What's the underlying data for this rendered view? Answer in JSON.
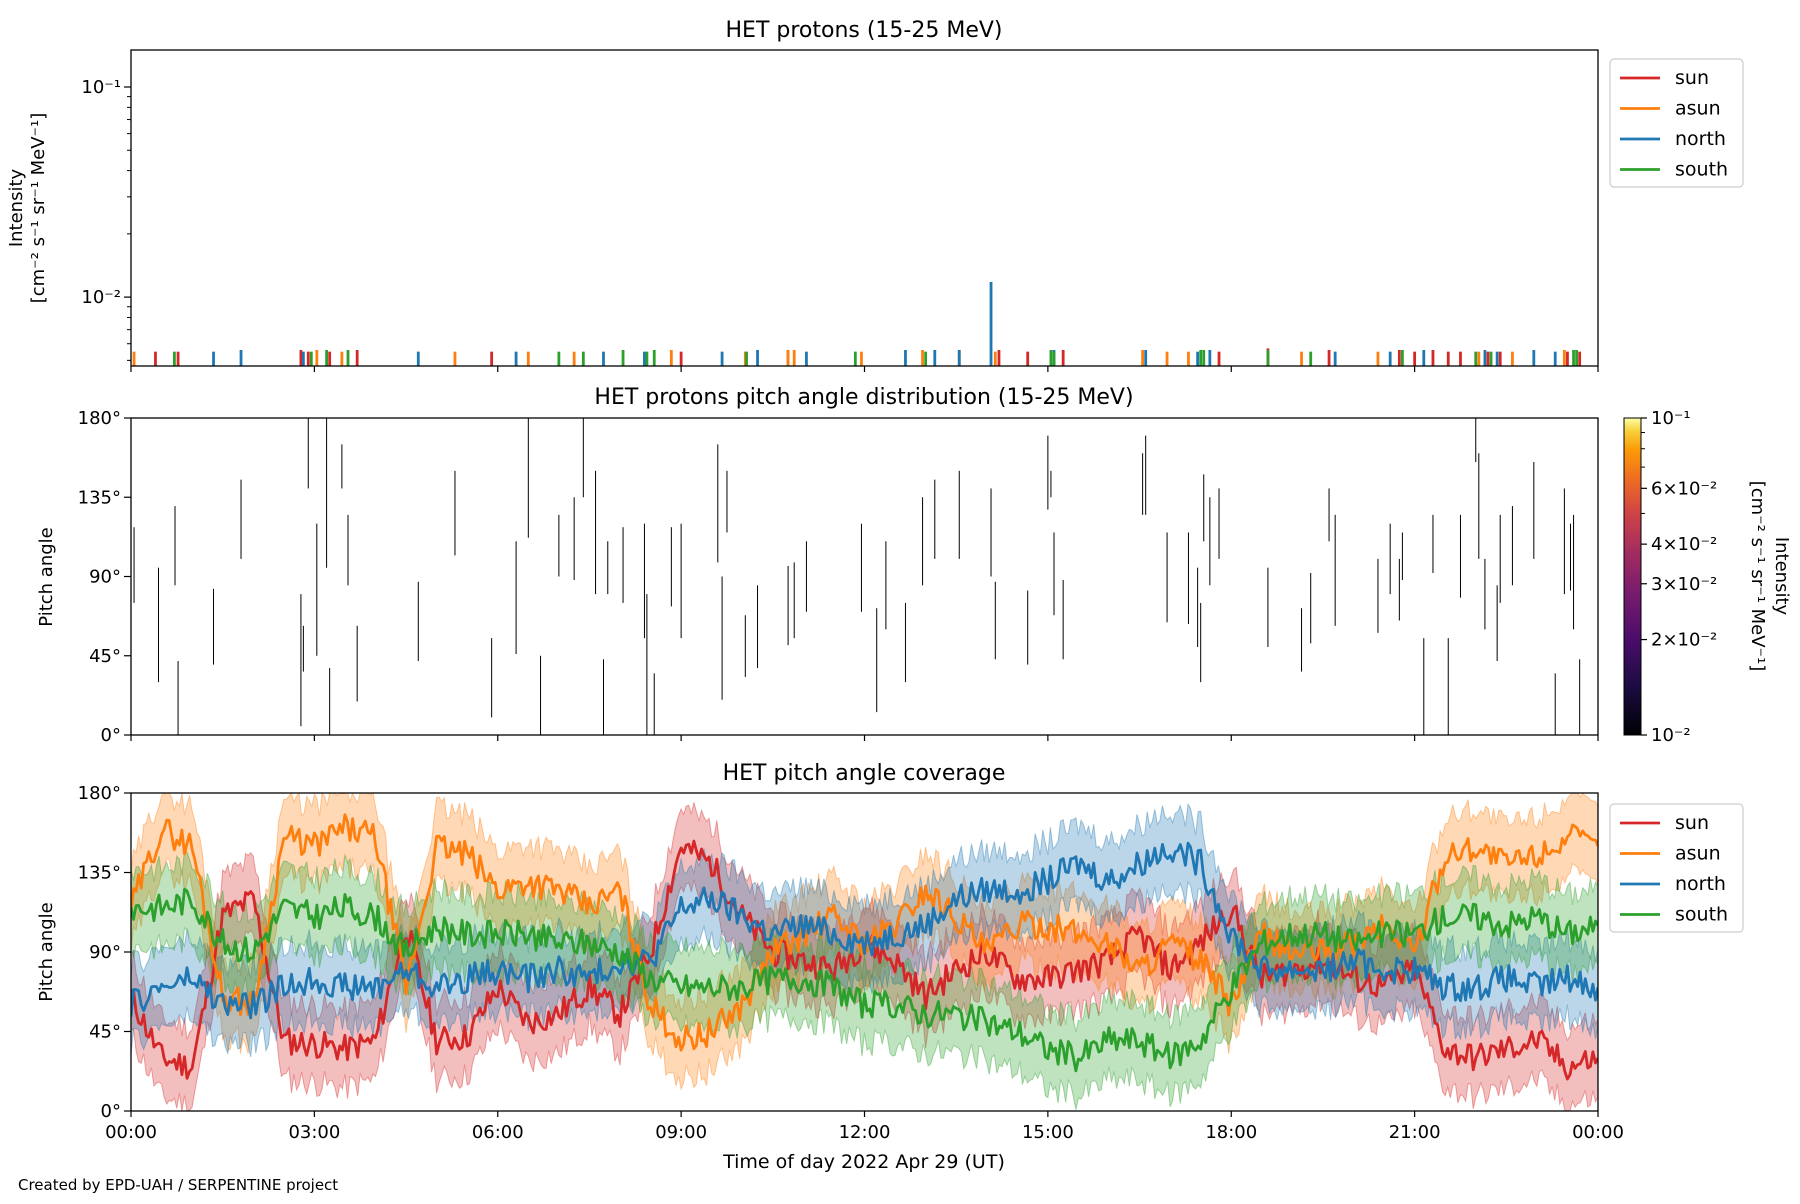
{
  "figure": {
    "credit": "Created by EPD-UAH / SERPENTINE project",
    "xlabel": "Time of day 2022 Apr 29 (UT)",
    "xticks": [
      "00:00",
      "03:00",
      "06:00",
      "09:00",
      "12:00",
      "15:00",
      "18:00",
      "21:00",
      "00:00"
    ]
  },
  "colors": {
    "sun": "#d62728",
    "asun": "#ff7f0e",
    "north": "#1f77b4",
    "south": "#2ca02c"
  },
  "chart_data": [
    {
      "type": "bar",
      "title": "HET protons (15-25 MeV)",
      "ylabel_line1": "Intensity",
      "ylabel_line2": "[cm⁻² s⁻¹ sr⁻¹ MeV⁻¹]",
      "yscale": "log",
      "ylim": [
        0.0047,
        0.15
      ],
      "yticks": [
        "10⁻²",
        "10⁻¹"
      ],
      "xlim_hours": [
        0,
        24
      ],
      "legend": {
        "placement": "outside-top-right",
        "entries": [
          "sun",
          "asun",
          "north",
          "south"
        ]
      },
      "series": [
        {
          "name": "sun",
          "x_hours": [
            0.4,
            0.77,
            2.78,
            2.9,
            3.25,
            3.7,
            5.9,
            9.0,
            10.75,
            14.2,
            14.67,
            15.25,
            17.8,
            18.6,
            19.6,
            20.75,
            21.0,
            21.3,
            21.55,
            21.75,
            22.2,
            22.4,
            23.5,
            23.7
          ],
          "values": [
            0.0055,
            0.0055,
            0.0056,
            0.0055,
            0.0055,
            0.0056,
            0.0055,
            0.0055,
            0.0056,
            0.0056,
            0.0055,
            0.0056,
            0.0055,
            0.0057,
            0.0056,
            0.0056,
            0.0055,
            0.0056,
            0.0055,
            0.0055,
            0.0055,
            0.0055,
            0.0055,
            0.0055
          ]
        },
        {
          "name": "asun",
          "x_hours": [
            0.05,
            3.04,
            3.45,
            5.3,
            6.5,
            7.25,
            8.84,
            10.05,
            10.75,
            10.85,
            11.95,
            12.95,
            13.55,
            14.14,
            16.55,
            16.95,
            17.3,
            19.15,
            20.4,
            22.05,
            22.6,
            23.45
          ],
          "values": [
            0.0055,
            0.0056,
            0.0055,
            0.0055,
            0.0055,
            0.0055,
            0.0056,
            0.0055,
            0.0056,
            0.0056,
            0.0055,
            0.0056,
            0.0056,
            0.0055,
            0.0056,
            0.0055,
            0.0055,
            0.0055,
            0.0055,
            0.0055,
            0.0055,
            0.0056
          ]
        },
        {
          "name": "north",
          "x_hours": [
            1.35,
            1.8,
            2.82,
            4.7,
            6.3,
            7.73,
            8.4,
            9.67,
            10.25,
            11.05,
            12.67,
            13.15,
            13.55,
            14.07,
            15.1,
            16.6,
            17.45,
            17.65,
            19.7,
            20.6,
            21.15,
            22.15,
            22.35,
            22.95,
            23.3
          ],
          "values": [
            0.0055,
            0.0056,
            0.0055,
            0.0055,
            0.0055,
            0.0055,
            0.0055,
            0.0055,
            0.0056,
            0.0055,
            0.0056,
            0.0056,
            0.0056,
            0.0118,
            0.0056,
            0.0056,
            0.0055,
            0.0056,
            0.0055,
            0.0055,
            0.0056,
            0.0056,
            0.0055,
            0.0056,
            0.0055
          ]
        },
        {
          "name": "south",
          "x_hours": [
            0.71,
            2.95,
            3.2,
            3.55,
            7.0,
            7.4,
            8.05,
            8.44,
            8.56,
            10.07,
            11.85,
            13.0,
            15.05,
            15.1,
            17.5,
            17.55,
            18.6,
            19.3,
            20.8,
            22.0,
            22.25,
            23.6,
            23.65
          ],
          "values": [
            0.0055,
            0.0055,
            0.0056,
            0.0056,
            0.0055,
            0.0055,
            0.0056,
            0.0055,
            0.0056,
            0.0055,
            0.0055,
            0.0055,
            0.0056,
            0.0055,
            0.0056,
            0.0056,
            0.0056,
            0.0055,
            0.0056,
            0.0055,
            0.0055,
            0.0056,
            0.0056
          ]
        }
      ]
    },
    {
      "type": "scatter",
      "title": "HET protons pitch angle distribution (15-25 MeV)",
      "ylabel": "Pitch angle",
      "ylim": [
        0,
        180
      ],
      "yticks": [
        "0°",
        "45°",
        "90°",
        "135°",
        "180°"
      ],
      "xlim_hours": [
        0,
        24
      ],
      "colorbar": {
        "label_line1": "Intensity",
        "label_line2": "[cm⁻² s⁻¹ sr⁻¹ MeV⁻¹]",
        "scale": "log",
        "range": [
          0.01,
          0.1
        ],
        "cmap": "inferno",
        "ticks": [
          "10⁻²",
          "2×10⁻²",
          "3×10⁻²",
          "4×10⁻²",
          "6×10⁻²",
          "10⁻¹"
        ]
      },
      "segments": [
        [
          0.05,
          75,
          118
        ],
        [
          0.45,
          30,
          95
        ],
        [
          0.72,
          85,
          130
        ],
        [
          0.77,
          0,
          42
        ],
        [
          1.35,
          40,
          83
        ],
        [
          1.8,
          100,
          145
        ],
        [
          2.78,
          5,
          80
        ],
        [
          2.82,
          36,
          62
        ],
        [
          2.9,
          140,
          180
        ],
        [
          3.04,
          45,
          120
        ],
        [
          3.2,
          95,
          180
        ],
        [
          3.25,
          0,
          38
        ],
        [
          3.45,
          140,
          165
        ],
        [
          3.55,
          85,
          125
        ],
        [
          3.7,
          19,
          62
        ],
        [
          4.7,
          42,
          87
        ],
        [
          5.3,
          102,
          150
        ],
        [
          5.9,
          10,
          55
        ],
        [
          6.3,
          46,
          110
        ],
        [
          6.5,
          112,
          180
        ],
        [
          6.7,
          0,
          45
        ],
        [
          7.0,
          90,
          125
        ],
        [
          7.25,
          88,
          135
        ],
        [
          7.4,
          135,
          180
        ],
        [
          7.73,
          0,
          43
        ],
        [
          7.6,
          80,
          150
        ],
        [
          7.8,
          80,
          110
        ],
        [
          8.05,
          75,
          118
        ],
        [
          8.4,
          55,
          120
        ],
        [
          8.44,
          0,
          80
        ],
        [
          8.56,
          0,
          35
        ],
        [
          8.84,
          73,
          118
        ],
        [
          9.0,
          55,
          120
        ],
        [
          9.6,
          98,
          165
        ],
        [
          9.67,
          20,
          90
        ],
        [
          9.75,
          115,
          150
        ],
        [
          10.05,
          33,
          68
        ],
        [
          10.25,
          38,
          85
        ],
        [
          10.75,
          51,
          96
        ],
        [
          10.85,
          55,
          98
        ],
        [
          11.05,
          70,
          110
        ],
        [
          11.95,
          70,
          120
        ],
        [
          12.2,
          13,
          72
        ],
        [
          12.35,
          60,
          110
        ],
        [
          12.67,
          30,
          75
        ],
        [
          12.95,
          85,
          135
        ],
        [
          13.15,
          100,
          145
        ],
        [
          13.55,
          100,
          150
        ],
        [
          14.07,
          90,
          140
        ],
        [
          14.14,
          43,
          87
        ],
        [
          14.67,
          40,
          82
        ],
        [
          15.0,
          128,
          170
        ],
        [
          15.05,
          135,
          150
        ],
        [
          15.1,
          68,
          115
        ],
        [
          15.25,
          43,
          88
        ],
        [
          16.55,
          125,
          160
        ],
        [
          16.6,
          125,
          170
        ],
        [
          16.95,
          64,
          115
        ],
        [
          17.3,
          63,
          115
        ],
        [
          17.45,
          50,
          95
        ],
        [
          17.5,
          30,
          75
        ],
        [
          17.55,
          110,
          148
        ],
        [
          17.65,
          85,
          135
        ],
        [
          17.8,
          100,
          140
        ],
        [
          18.6,
          50,
          95
        ],
        [
          19.15,
          36,
          72
        ],
        [
          19.3,
          52,
          92
        ],
        [
          19.6,
          110,
          140
        ],
        [
          19.7,
          62,
          125
        ],
        [
          20.4,
          58,
          100
        ],
        [
          20.6,
          80,
          120
        ],
        [
          20.75,
          65,
          100
        ],
        [
          20.8,
          88,
          115
        ],
        [
          21.15,
          0,
          55
        ],
        [
          21.3,
          92,
          125
        ],
        [
          21.55,
          0,
          55
        ],
        [
          21.75,
          78,
          125
        ],
        [
          22.0,
          155,
          180
        ],
        [
          22.05,
          100,
          160
        ],
        [
          22.15,
          60,
          100
        ],
        [
          22.35,
          42,
          85
        ],
        [
          22.4,
          75,
          125
        ],
        [
          22.6,
          85,
          130
        ],
        [
          22.95,
          100,
          155
        ],
        [
          23.3,
          0,
          35
        ],
        [
          23.45,
          80,
          140
        ],
        [
          23.55,
          82,
          120
        ],
        [
          23.6,
          60,
          125
        ],
        [
          23.7,
          0,
          43
        ]
      ]
    },
    {
      "type": "line",
      "title": "HET pitch angle coverage",
      "ylabel": "Pitch angle",
      "ylim": [
        0,
        180
      ],
      "yticks": [
        "0°",
        "45°",
        "90°",
        "135°",
        "180°"
      ],
      "xlim_hours": [
        0,
        24
      ],
      "band_halfwidth_deg": 22,
      "legend": {
        "placement": "outside-top-right",
        "entries": [
          "sun",
          "asun",
          "north",
          "south"
        ]
      },
      "series": [
        {
          "name": "sun",
          "x_hours": [
            0,
            0.5,
            1,
            1.5,
            2,
            2.5,
            3,
            3.5,
            4,
            4.5,
            5,
            5.5,
            6,
            6.5,
            7,
            7.5,
            8,
            8.5,
            9,
            9.5,
            10,
            10.5,
            11,
            11.5,
            12,
            12.5,
            13,
            13.5,
            14,
            14.5,
            15,
            15.5,
            16,
            16.5,
            17,
            17.5,
            18,
            18.5,
            19,
            19.5,
            20,
            20.5,
            21,
            21.5,
            22,
            22.5,
            23,
            23.5,
            24
          ],
          "values": [
            65,
            30,
            25,
            110,
            120,
            40,
            38,
            35,
            40,
            105,
            40,
            42,
            70,
            50,
            55,
            70,
            55,
            90,
            150,
            140,
            110,
            90,
            85,
            80,
            95,
            85,
            65,
            80,
            90,
            75,
            75,
            80,
            85,
            100,
            80,
            95,
            115,
            75,
            80,
            85,
            75,
            70,
            80,
            35,
            30,
            35,
            40,
            25,
            30
          ]
        },
        {
          "name": "asun",
          "x_hours": [
            0,
            0.5,
            1,
            1.5,
            2,
            2.5,
            3,
            3.5,
            4,
            4.5,
            5,
            5.5,
            6,
            6.5,
            7,
            7.5,
            8,
            8.5,
            9,
            9.5,
            10,
            10.5,
            11,
            11.5,
            12,
            12.5,
            13,
            13.5,
            14,
            14.5,
            15,
            15.5,
            16,
            16.5,
            17,
            17.5,
            18,
            18.5,
            19,
            19.5,
            20,
            20.5,
            21,
            21.5,
            22,
            22.5,
            23,
            23.5,
            24
          ],
          "values": [
            115,
            160,
            150,
            65,
            60,
            155,
            150,
            160,
            155,
            70,
            150,
            145,
            125,
            130,
            125,
            115,
            125,
            60,
            40,
            45,
            60,
            90,
            100,
            110,
            95,
            105,
            125,
            110,
            90,
            105,
            105,
            100,
            95,
            80,
            95,
            85,
            60,
            100,
            90,
            90,
            95,
            105,
            90,
            145,
            150,
            140,
            145,
            155,
            150
          ]
        },
        {
          "name": "north",
          "x_hours": [
            0,
            0.5,
            1,
            1.5,
            2,
            2.5,
            3,
            3.5,
            4,
            4.5,
            5,
            5.5,
            6,
            6.5,
            7,
            7.5,
            8,
            8.5,
            9,
            9.5,
            10,
            10.5,
            11,
            11.5,
            12,
            12.5,
            13,
            13.5,
            14,
            14.5,
            15,
            15.5,
            16,
            16.5,
            17,
            17.5,
            18,
            18.5,
            19,
            19.5,
            20,
            20.5,
            21,
            21.5,
            22,
            22.5,
            23,
            23.5,
            24
          ],
          "values": [
            60,
            70,
            75,
            60,
            60,
            70,
            75,
            70,
            70,
            80,
            70,
            75,
            80,
            75,
            80,
            75,
            85,
            85,
            115,
            120,
            110,
            100,
            105,
            100,
            95,
            100,
            105,
            120,
            125,
            125,
            130,
            140,
            130,
            140,
            150,
            140,
            100,
            80,
            80,
            80,
            85,
            80,
            80,
            70,
            70,
            75,
            70,
            75,
            70
          ]
        },
        {
          "name": "south",
          "x_hours": [
            0,
            0.5,
            1,
            1.5,
            2,
            2.5,
            3,
            3.5,
            4,
            4.5,
            5,
            5.5,
            6,
            6.5,
            7,
            7.5,
            8,
            8.5,
            9,
            9.5,
            10,
            10.5,
            11,
            11.5,
            12,
            12.5,
            13,
            13.5,
            14,
            14.5,
            15,
            15.5,
            16,
            16.5,
            17,
            17.5,
            18,
            18.5,
            19,
            19.5,
            20,
            20.5,
            21,
            21.5,
            22,
            22.5,
            23,
            23.5,
            24
          ],
          "values": [
            115,
            115,
            120,
            95,
            90,
            115,
            110,
            115,
            110,
            90,
            105,
            100,
            100,
            100,
            95,
            95,
            90,
            75,
            70,
            70,
            70,
            75,
            75,
            70,
            60,
            60,
            55,
            55,
            50,
            45,
            35,
            30,
            40,
            40,
            30,
            40,
            70,
            95,
            100,
            100,
            95,
            100,
            100,
            110,
            110,
            105,
            110,
            100,
            105
          ]
        }
      ]
    }
  ]
}
